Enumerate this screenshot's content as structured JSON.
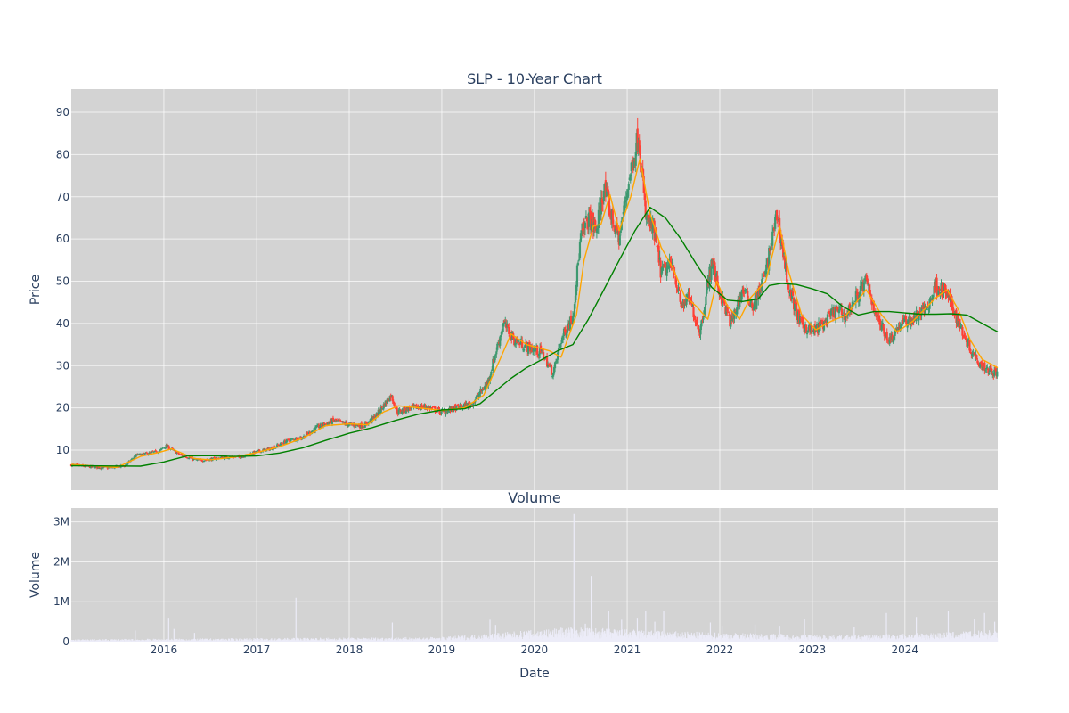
{
  "chart_data": [
    {
      "type": "candlestick",
      "title": "SLP - 10-Year Chart",
      "ylabel": "Price",
      "ylim": [
        0.5,
        95.5
      ],
      "y_ticks": [
        10,
        20,
        30,
        40,
        50,
        60,
        70,
        80,
        90
      ],
      "x_range": [
        "2015-01-01",
        "2025-01-01"
      ],
      "x_ticks": [
        "2016",
        "2017",
        "2018",
        "2019",
        "2020",
        "2021",
        "2022",
        "2023",
        "2024"
      ],
      "grid": true,
      "colors": {
        "up": "#3d9970",
        "down": "#ff4136",
        "short_ma": "#ffa500",
        "long_ma": "#008000",
        "plot_bg": "#d3d3d3"
      },
      "price_path": [
        [
          "2015-01-01",
          6.5
        ],
        [
          "2015-03-01",
          6.1
        ],
        [
          "2015-06-01",
          5.8
        ],
        [
          "2015-08-01",
          6.3
        ],
        [
          "2015-09-15",
          8.8
        ],
        [
          "2015-11-01",
          9.2
        ],
        [
          "2015-12-15",
          9.8
        ],
        [
          "2016-01-10",
          11.0
        ],
        [
          "2016-03-01",
          9.0
        ],
        [
          "2016-05-15",
          7.5
        ],
        [
          "2016-07-01",
          7.8
        ],
        [
          "2016-09-01",
          8.3
        ],
        [
          "2016-11-01",
          8.4
        ],
        [
          "2017-01-01",
          9.6
        ],
        [
          "2017-03-01",
          10.4
        ],
        [
          "2017-05-01",
          12.2
        ],
        [
          "2017-07-01",
          13.0
        ],
        [
          "2017-09-01",
          15.5
        ],
        [
          "2017-11-01",
          17.0
        ],
        [
          "2018-01-01",
          16.0
        ],
        [
          "2018-03-01",
          15.8
        ],
        [
          "2018-04-15",
          18.0
        ],
        [
          "2018-06-15",
          23.0
        ],
        [
          "2018-07-10",
          19.0
        ],
        [
          "2018-09-01",
          20.0
        ],
        [
          "2018-11-01",
          20.3
        ],
        [
          "2019-01-01",
          19.0
        ],
        [
          "2019-03-01",
          20.0
        ],
        [
          "2019-05-01",
          21.0
        ],
        [
          "2019-07-01",
          26.0
        ],
        [
          "2019-09-01",
          40.0
        ],
        [
          "2019-10-15",
          36.0
        ],
        [
          "2019-12-01",
          34.5
        ],
        [
          "2020-02-01",
          33.0
        ],
        [
          "2020-03-15",
          28.0
        ],
        [
          "2020-04-15",
          36.0
        ],
        [
          "2020-06-01",
          42.0
        ],
        [
          "2020-07-01",
          60.0
        ],
        [
          "2020-08-01",
          65.0
        ],
        [
          "2020-09-01",
          62.0
        ],
        [
          "2020-10-01",
          72.0
        ],
        [
          "2020-11-01",
          65.0
        ],
        [
          "2020-12-01",
          60.0
        ],
        [
          "2021-01-01",
          72.0
        ],
        [
          "2021-02-15",
          85.0
        ],
        [
          "2021-03-15",
          65.0
        ],
        [
          "2021-04-15",
          62.0
        ],
        [
          "2021-05-15",
          52.0
        ],
        [
          "2021-07-01",
          54.0
        ],
        [
          "2021-08-01",
          44.0
        ],
        [
          "2021-09-01",
          46.0
        ],
        [
          "2021-10-15",
          38.0
        ],
        [
          "2021-12-01",
          55.0
        ],
        [
          "2022-01-01",
          47.0
        ],
        [
          "2022-02-15",
          40.0
        ],
        [
          "2022-04-01",
          48.0
        ],
        [
          "2022-05-15",
          44.0
        ],
        [
          "2022-07-01",
          52.0
        ],
        [
          "2022-08-15",
          66.0
        ],
        [
          "2022-10-01",
          48.0
        ],
        [
          "2022-11-15",
          40.0
        ],
        [
          "2023-01-01",
          38.0
        ],
        [
          "2023-02-15",
          40.0
        ],
        [
          "2023-04-01",
          43.0
        ],
        [
          "2023-05-15",
          42.0
        ],
        [
          "2023-07-01",
          47.0
        ],
        [
          "2023-08-01",
          50.0
        ],
        [
          "2023-09-15",
          41.0
        ],
        [
          "2023-11-01",
          36.0
        ],
        [
          "2023-12-15",
          40.0
        ],
        [
          "2024-02-01",
          41.0
        ],
        [
          "2024-04-01",
          44.0
        ],
        [
          "2024-05-01",
          49.0
        ],
        [
          "2024-06-15",
          47.0
        ],
        [
          "2024-08-01",
          40.0
        ],
        [
          "2024-09-15",
          34.0
        ],
        [
          "2024-11-01",
          30.0
        ],
        [
          "2025-01-01",
          28.0
        ]
      ],
      "short_ma": [
        [
          "2015-01-01",
          6.6
        ],
        [
          "2015-07-01",
          5.9
        ],
        [
          "2015-10-01",
          8.5
        ],
        [
          "2015-12-15",
          9.5
        ],
        [
          "2016-02-01",
          10.3
        ],
        [
          "2016-05-01",
          8.0
        ],
        [
          "2016-07-01",
          7.7
        ],
        [
          "2016-10-01",
          8.3
        ],
        [
          "2017-01-01",
          9.4
        ],
        [
          "2017-04-01",
          10.8
        ],
        [
          "2017-07-01",
          12.8
        ],
        [
          "2017-10-01",
          15.8
        ],
        [
          "2018-01-01",
          16.2
        ],
        [
          "2018-03-15",
          16.0
        ],
        [
          "2018-05-15",
          19.0
        ],
        [
          "2018-07-15",
          20.5
        ],
        [
          "2018-10-01",
          20.0
        ],
        [
          "2019-01-01",
          19.4
        ],
        [
          "2019-04-01",
          20.0
        ],
        [
          "2019-06-15",
          23.0
        ],
        [
          "2019-08-15",
          31.0
        ],
        [
          "2019-10-01",
          37.5
        ],
        [
          "2019-12-01",
          35.0
        ],
        [
          "2020-03-01",
          33.5
        ],
        [
          "2020-04-15",
          32.0
        ],
        [
          "2020-06-15",
          42.0
        ],
        [
          "2020-07-15",
          55.0
        ],
        [
          "2020-08-20",
          63.0
        ],
        [
          "2020-09-20",
          63.5
        ],
        [
          "2020-10-25",
          70.5
        ],
        [
          "2020-12-01",
          62.0
        ],
        [
          "2021-01-15",
          70.0
        ],
        [
          "2021-02-20",
          79.0
        ],
        [
          "2021-04-01",
          66.0
        ],
        [
          "2021-05-15",
          58.0
        ],
        [
          "2021-07-01",
          53.0
        ],
        [
          "2021-08-15",
          46.5
        ],
        [
          "2021-10-01",
          44.0
        ],
        [
          "2021-11-15",
          41.0
        ],
        [
          "2021-12-20",
          50.0
        ],
        [
          "2022-02-01",
          44.0
        ],
        [
          "2022-03-20",
          41.0
        ],
        [
          "2022-05-01",
          46.0
        ],
        [
          "2022-07-01",
          50.0
        ],
        [
          "2022-08-25",
          63.0
        ],
        [
          "2022-10-01",
          52.0
        ],
        [
          "2022-11-20",
          42.0
        ],
        [
          "2023-01-15",
          38.5
        ],
        [
          "2023-03-15",
          40.5
        ],
        [
          "2023-05-15",
          42.0
        ],
        [
          "2023-08-01",
          48.0
        ],
        [
          "2023-10-01",
          42.0
        ],
        [
          "2023-12-01",
          38.0
        ],
        [
          "2024-02-01",
          40.5
        ],
        [
          "2024-05-01",
          46.0
        ],
        [
          "2024-06-15",
          48.0
        ],
        [
          "2024-08-01",
          43.0
        ],
        [
          "2024-09-15",
          36.0
        ],
        [
          "2024-11-01",
          31.5
        ],
        [
          "2025-01-01",
          29.5
        ]
      ],
      "long_ma": [
        [
          "2015-01-01",
          6.3
        ],
        [
          "2015-10-01",
          6.2
        ],
        [
          "2016-01-01",
          7.2
        ],
        [
          "2016-04-01",
          8.6
        ],
        [
          "2016-07-01",
          8.7
        ],
        [
          "2016-10-01",
          8.5
        ],
        [
          "2017-01-01",
          8.6
        ],
        [
          "2017-04-01",
          9.3
        ],
        [
          "2017-07-01",
          10.5
        ],
        [
          "2017-10-01",
          12.3
        ],
        [
          "2018-01-01",
          14.0
        ],
        [
          "2018-04-01",
          15.3
        ],
        [
          "2018-07-01",
          17.0
        ],
        [
          "2018-10-01",
          18.5
        ],
        [
          "2019-01-01",
          19.5
        ],
        [
          "2019-04-01",
          19.8
        ],
        [
          "2019-06-01",
          21.0
        ],
        [
          "2019-08-01",
          24.0
        ],
        [
          "2019-10-01",
          27.0
        ],
        [
          "2019-12-01",
          29.5
        ],
        [
          "2020-02-01",
          31.5
        ],
        [
          "2020-04-01",
          33.5
        ],
        [
          "2020-06-01",
          35.0
        ],
        [
          "2020-08-01",
          41.0
        ],
        [
          "2020-10-01",
          48.0
        ],
        [
          "2020-12-01",
          55.0
        ],
        [
          "2021-02-01",
          62.0
        ],
        [
          "2021-04-01",
          67.5
        ],
        [
          "2021-06-01",
          65.0
        ],
        [
          "2021-08-01",
          60.0
        ],
        [
          "2021-10-01",
          54.0
        ],
        [
          "2021-12-01",
          48.5
        ],
        [
          "2022-02-01",
          45.5
        ],
        [
          "2022-04-01",
          45.2
        ],
        [
          "2022-06-01",
          45.8
        ],
        [
          "2022-07-15",
          49.0
        ],
        [
          "2022-09-01",
          49.5
        ],
        [
          "2022-11-01",
          49.2
        ],
        [
          "2023-01-01",
          48.2
        ],
        [
          "2023-03-01",
          47.0
        ],
        [
          "2023-05-01",
          44.0
        ],
        [
          "2023-07-01",
          42.0
        ],
        [
          "2023-09-01",
          42.8
        ],
        [
          "2023-11-01",
          42.8
        ],
        [
          "2024-01-01",
          42.5
        ],
        [
          "2024-03-01",
          42.2
        ],
        [
          "2024-05-01",
          42.2
        ],
        [
          "2024-07-01",
          42.3
        ],
        [
          "2024-09-01",
          42.0
        ],
        [
          "2024-11-01",
          40.0
        ],
        [
          "2025-01-01",
          38.0
        ]
      ]
    },
    {
      "type": "bar",
      "title": "Volume",
      "xlabel": "Date",
      "ylabel": "Volume",
      "ylim": [
        0,
        3350000
      ],
      "y_ticks": [
        0,
        1000000,
        2000000,
        3000000
      ],
      "y_tick_labels": [
        "0",
        "1M",
        "2M",
        "3M"
      ],
      "x_range": [
        "2015-01-01",
        "2025-01-01"
      ],
      "x_ticks": [
        "2016",
        "2017",
        "2018",
        "2019",
        "2020",
        "2021",
        "2022",
        "2023",
        "2024"
      ],
      "grid": true,
      "bar_color": "#ececf8",
      "baseline_level": [
        [
          "2015-01-01",
          40000
        ],
        [
          "2017-01-01",
          60000
        ],
        [
          "2019-01-01",
          80000
        ],
        [
          "2019-07-01",
          140000
        ],
        [
          "2020-06-01",
          250000
        ],
        [
          "2021-06-01",
          180000
        ],
        [
          "2022-06-01",
          140000
        ],
        [
          "2023-06-01",
          110000
        ],
        [
          "2024-06-01",
          160000
        ],
        [
          "2025-01-01",
          200000
        ]
      ],
      "spikes": [
        [
          "2015-09-10",
          280000
        ],
        [
          "2016-01-20",
          600000
        ],
        [
          "2016-02-10",
          320000
        ],
        [
          "2016-05-01",
          220000
        ],
        [
          "2017-06-05",
          1100000
        ],
        [
          "2018-06-20",
          480000
        ],
        [
          "2019-07-10",
          550000
        ],
        [
          "2019-08-01",
          420000
        ],
        [
          "2020-04-15",
          350000
        ],
        [
          "2020-06-05",
          3200000
        ],
        [
          "2020-07-20",
          450000
        ],
        [
          "2020-08-12",
          1650000
        ],
        [
          "2020-10-20",
          780000
        ],
        [
          "2020-12-10",
          550000
        ],
        [
          "2021-02-10",
          600000
        ],
        [
          "2021-03-15",
          760000
        ],
        [
          "2021-04-20",
          500000
        ],
        [
          "2021-05-25",
          780000
        ],
        [
          "2021-11-25",
          480000
        ],
        [
          "2022-01-10",
          400000
        ],
        [
          "2022-05-20",
          430000
        ],
        [
          "2022-08-25",
          400000
        ],
        [
          "2022-12-01",
          560000
        ],
        [
          "2023-06-15",
          380000
        ],
        [
          "2023-10-20",
          720000
        ],
        [
          "2024-02-15",
          620000
        ],
        [
          "2024-06-20",
          780000
        ],
        [
          "2024-10-01",
          560000
        ],
        [
          "2024-11-10",
          720000
        ],
        [
          "2024-12-20",
          500000
        ]
      ]
    }
  ]
}
